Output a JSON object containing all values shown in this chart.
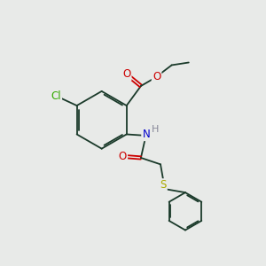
{
  "background_color": "#e8eae8",
  "bond_color": "#1a3a2a",
  "cl_color": "#33aa00",
  "o_color": "#cc0000",
  "n_color": "#0000cc",
  "s_color": "#aaaa00",
  "h_color": "#888899",
  "line_width": 1.3,
  "font_size": 8.5,
  "fig_size": [
    3.0,
    3.0
  ],
  "dpi": 100,
  "xlim": [
    0,
    10
  ],
  "ylim": [
    0,
    10
  ]
}
